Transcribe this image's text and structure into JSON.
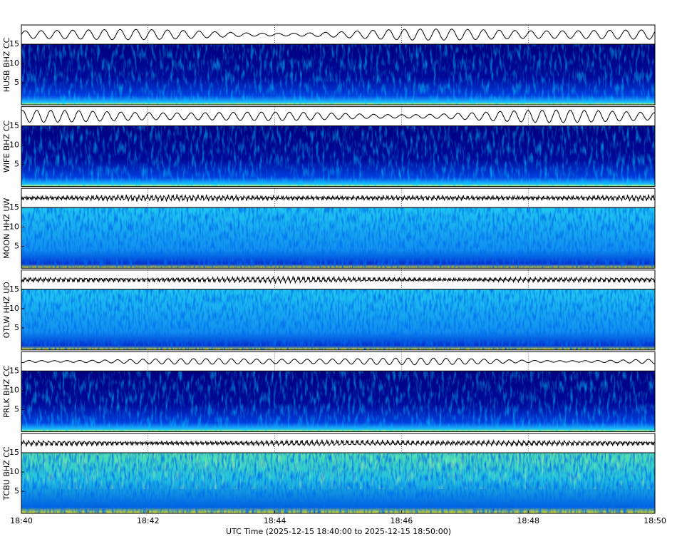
{
  "chart_data": {
    "type": "spectrogram",
    "xlabel": "UTC Time (2025-12-15 18:40:00 to 2025-12-15 18:50:00)",
    "xticks": [
      "18:40",
      "18:42",
      "18:44",
      "18:46",
      "18:48",
      "18:50"
    ],
    "panels": [
      {
        "label": "HUSB BHZ CC",
        "ylim": [
          -0.7,
          15
        ],
        "yticks": [
          5,
          10,
          15
        ]
      },
      {
        "label": "WIFE BHZ CC",
        "ylim": [
          -0.7,
          15
        ],
        "yticks": [
          5,
          10,
          15
        ]
      },
      {
        "label": "MOON HHZ UW",
        "ylim": [
          -0.7,
          15
        ],
        "yticks": [
          5,
          10,
          15
        ]
      },
      {
        "label": "OTLW HHZ UO",
        "ylim": [
          -0.7,
          15
        ],
        "yticks": [
          5,
          10,
          15
        ]
      },
      {
        "label": "PRLK BHZ CC",
        "ylim": [
          -0.7,
          15
        ],
        "yticks": [
          5,
          10,
          15
        ]
      },
      {
        "label": "TCBU BHZ CC",
        "ylim": [
          -0.7,
          15
        ],
        "yticks": [
          5,
          10,
          15
        ]
      }
    ]
  }
}
